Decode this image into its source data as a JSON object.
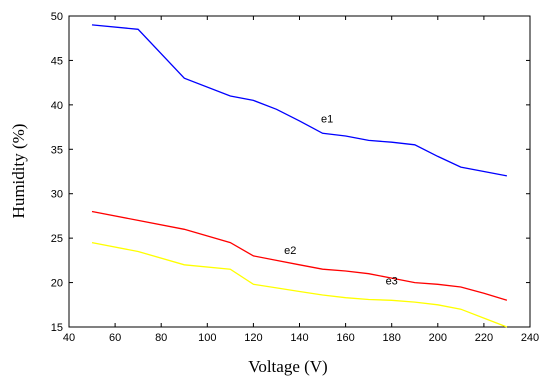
{
  "chart_data": {
    "type": "line",
    "title": "",
    "xlabel": "Voltage (V)",
    "ylabel": "Humidity (%)",
    "xlim": [
      40,
      240
    ],
    "ylim": [
      15,
      50
    ],
    "xticks": [
      40,
      60,
      80,
      100,
      120,
      140,
      160,
      180,
      200,
      220,
      240
    ],
    "yticks": [
      15,
      20,
      25,
      30,
      35,
      40,
      45,
      50
    ],
    "grid": false,
    "legend": "none",
    "series": [
      {
        "name": "e1",
        "color": "#0000ff",
        "x": [
          50,
          70,
          90,
          110,
          120,
          130,
          140,
          150,
          160,
          170,
          180,
          190,
          200,
          210,
          220,
          230
        ],
        "y": [
          49,
          48.5,
          43,
          41,
          40.5,
          39.5,
          38.2,
          36.8,
          36.5,
          36,
          35.8,
          35.5,
          34.2,
          33,
          32.5,
          32
        ]
      },
      {
        "name": "e2",
        "color": "#ff0000",
        "x": [
          50,
          70,
          90,
          110,
          120,
          130,
          140,
          150,
          160,
          170,
          180,
          190,
          200,
          210,
          220,
          230
        ],
        "y": [
          28,
          27,
          26,
          24.5,
          23,
          22.5,
          22,
          21.5,
          21.3,
          21,
          20.5,
          20,
          19.8,
          19.5,
          18.8,
          18
        ]
      },
      {
        "name": "e3",
        "color": "#ffff00",
        "x": [
          50,
          70,
          90,
          110,
          120,
          130,
          140,
          150,
          160,
          170,
          180,
          190,
          200,
          210,
          220,
          230
        ],
        "y": [
          24.5,
          23.5,
          22,
          21.5,
          19.8,
          19.4,
          19,
          18.6,
          18.3,
          18.1,
          18,
          17.8,
          17.5,
          17,
          16,
          15
        ]
      }
    ],
    "annotations": [
      {
        "text": "e1",
        "x": 152,
        "y": 38
      },
      {
        "text": "e2",
        "x": 136,
        "y": 23.2
      },
      {
        "text": "e3",
        "x": 180,
        "y": 19.8
      }
    ]
  }
}
